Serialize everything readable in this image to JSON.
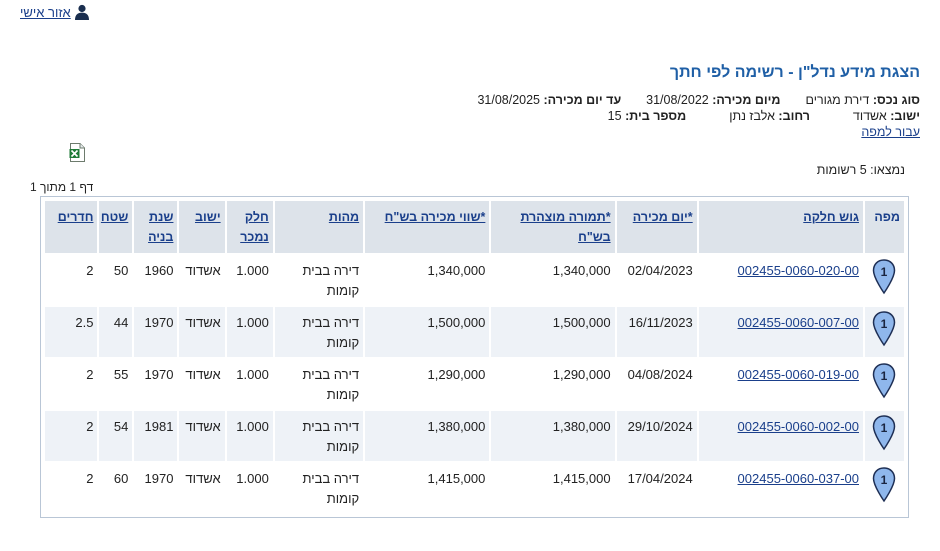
{
  "personal_area": {
    "label": "אזור אישי",
    "icon": "user-icon"
  },
  "title": "הצגת מידע נדל\"ן - רשימה לפי חתך",
  "filters": {
    "asset_type_label": "סוג נכס:",
    "asset_type_value": "דירת מגורים",
    "from_date_label": "מיום מכירה:",
    "from_date_value": "31/08/2022",
    "to_date_label": "עד יום מכירה:",
    "to_date_value": "31/08/2025",
    "city_label": "ישוב:",
    "city_value": "אשדוד",
    "street_label": "רחוב:",
    "street_value": "אלבז נתן",
    "house_label": "מספר בית:",
    "house_value": "15",
    "map_link": "עבור למפה"
  },
  "export": {
    "icon": "excel-icon"
  },
  "results": {
    "found_text": "נמצאו: 5 רשומות",
    "page_text": "דף 1 מתוך 1"
  },
  "table": {
    "headers": {
      "map": "מפה",
      "parcel": "גוש חלקה",
      "sale_date": "*יום מכירה",
      "declared_value": "*תמורה מוצהרת בש\"ח",
      "sale_value": "*שווי מכירה בש\"ח",
      "nature": "מהות",
      "portion": "חלק נמכר",
      "city": "ישוב",
      "year": "שנת בניה",
      "area": "שטח",
      "rooms": "חדרים"
    },
    "rows": [
      {
        "marker": "1",
        "parcel": "002455-0060-020-00",
        "sale_date": "02/04/2023",
        "declared_value": "1,340,000",
        "sale_value": "1,340,000",
        "nature": "דירה בבית קומות",
        "portion": "1.000",
        "city": "אשדוד",
        "year": "1960",
        "area": "50",
        "rooms": "2"
      },
      {
        "marker": "1",
        "parcel": "002455-0060-007-00",
        "sale_date": "16/11/2023",
        "declared_value": "1,500,000",
        "sale_value": "1,500,000",
        "nature": "דירה בבית קומות",
        "portion": "1.000",
        "city": "אשדוד",
        "year": "1970",
        "area": "44",
        "rooms": "2.5"
      },
      {
        "marker": "1",
        "parcel": "002455-0060-019-00",
        "sale_date": "04/08/2024",
        "declared_value": "1,290,000",
        "sale_value": "1,290,000",
        "nature": "דירה בבית קומות",
        "portion": "1.000",
        "city": "אשדוד",
        "year": "1970",
        "area": "55",
        "rooms": "2"
      },
      {
        "marker": "1",
        "parcel": "002455-0060-002-00",
        "sale_date": "29/10/2024",
        "declared_value": "1,380,000",
        "sale_value": "1,380,000",
        "nature": "דירה בבית קומות",
        "portion": "1.000",
        "city": "אשדוד",
        "year": "1981",
        "area": "54",
        "rooms": "2"
      },
      {
        "marker": "1",
        "parcel": "002455-0060-037-00",
        "sale_date": "17/04/2024",
        "declared_value": "1,415,000",
        "sale_value": "1,415,000",
        "nature": "דירה בבית קומות",
        "portion": "1.000",
        "city": "אשדוד",
        "year": "1970",
        "area": "60",
        "rooms": "2"
      }
    ]
  }
}
